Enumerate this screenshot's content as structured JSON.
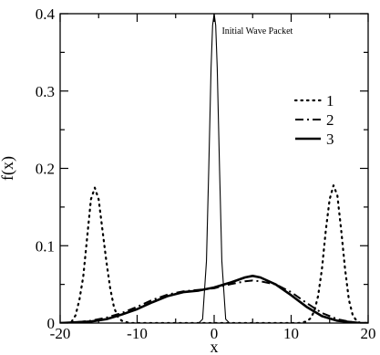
{
  "chart_data": {
    "type": "line",
    "title": "",
    "xlabel": "x",
    "ylabel": "f(x)",
    "xlim": [
      -20,
      20
    ],
    "ylim": [
      0,
      0.4
    ],
    "x_ticks": [
      -20,
      -10,
      0,
      10,
      20
    ],
    "x_tick_labels": [
      "-20",
      "-10",
      "0",
      "10",
      "20"
    ],
    "y_ticks": [
      0,
      0.1,
      0.2,
      0.3,
      0.4
    ],
    "y_tick_labels": [
      "0",
      "0.1",
      "0.2",
      "0.3",
      "0.4"
    ],
    "grid": false,
    "legend_position": "right",
    "annotations": [
      {
        "text": "Initial Wave Packet",
        "x": 1.0,
        "y": 0.39
      }
    ],
    "series": [
      {
        "name": "",
        "style": "thin-solid",
        "x": [
          -2.0,
          -1.5,
          -1.0,
          -0.7,
          -0.4,
          -0.2,
          0.0,
          0.2,
          0.4,
          0.7,
          1.0,
          1.5,
          2.0
        ],
        "y": [
          0.0,
          0.005,
          0.08,
          0.2,
          0.33,
          0.385,
          0.4,
          0.385,
          0.33,
          0.2,
          0.08,
          0.005,
          0.0
        ]
      },
      {
        "name": "1",
        "style": "dotted",
        "x": [
          -20,
          -19,
          -18.5,
          -18,
          -17.5,
          -17,
          -16.5,
          -16,
          -15.5,
          -15,
          -14.5,
          -14,
          -13.5,
          -13,
          -12.5,
          -12,
          -11,
          -10,
          -5,
          0,
          5,
          10,
          11,
          12,
          12.5,
          13,
          13.5,
          14,
          14.5,
          15,
          15.5,
          16,
          16.5,
          17,
          17.5,
          18,
          18.5,
          19,
          20
        ],
        "y": [
          0,
          0,
          0.002,
          0.01,
          0.03,
          0.06,
          0.11,
          0.16,
          0.175,
          0.16,
          0.12,
          0.08,
          0.045,
          0.02,
          0.008,
          0.003,
          0,
          0,
          0,
          0,
          0,
          0,
          0,
          0.002,
          0.006,
          0.015,
          0.035,
          0.07,
          0.12,
          0.16,
          0.178,
          0.165,
          0.12,
          0.07,
          0.03,
          0.01,
          0.003,
          0,
          0
        ]
      },
      {
        "name": "2",
        "style": "dash-dot",
        "x": [
          -20,
          -18,
          -16,
          -14,
          -12,
          -10,
          -8,
          -6,
          -4,
          -2,
          0,
          2,
          4,
          5,
          6,
          8,
          10,
          12,
          14,
          16,
          18,
          19,
          20
        ],
        "y": [
          0,
          0.001,
          0.003,
          0.007,
          0.013,
          0.021,
          0.03,
          0.037,
          0.041,
          0.043,
          0.045,
          0.05,
          0.054,
          0.055,
          0.054,
          0.05,
          0.04,
          0.026,
          0.013,
          0.005,
          0.001,
          0,
          0
        ]
      },
      {
        "name": "3",
        "style": "thick-solid",
        "x": [
          -20,
          -18,
          -16,
          -14,
          -12,
          -10,
          -8,
          -6,
          -4,
          -2,
          0,
          2,
          4,
          5,
          6,
          8,
          10,
          12,
          14,
          16,
          18,
          19,
          20
        ],
        "y": [
          0,
          0.001,
          0.002,
          0.005,
          0.011,
          0.018,
          0.027,
          0.035,
          0.04,
          0.042,
          0.046,
          0.052,
          0.059,
          0.061,
          0.059,
          0.05,
          0.036,
          0.021,
          0.009,
          0.003,
          0.001,
          0,
          0
        ]
      }
    ]
  }
}
